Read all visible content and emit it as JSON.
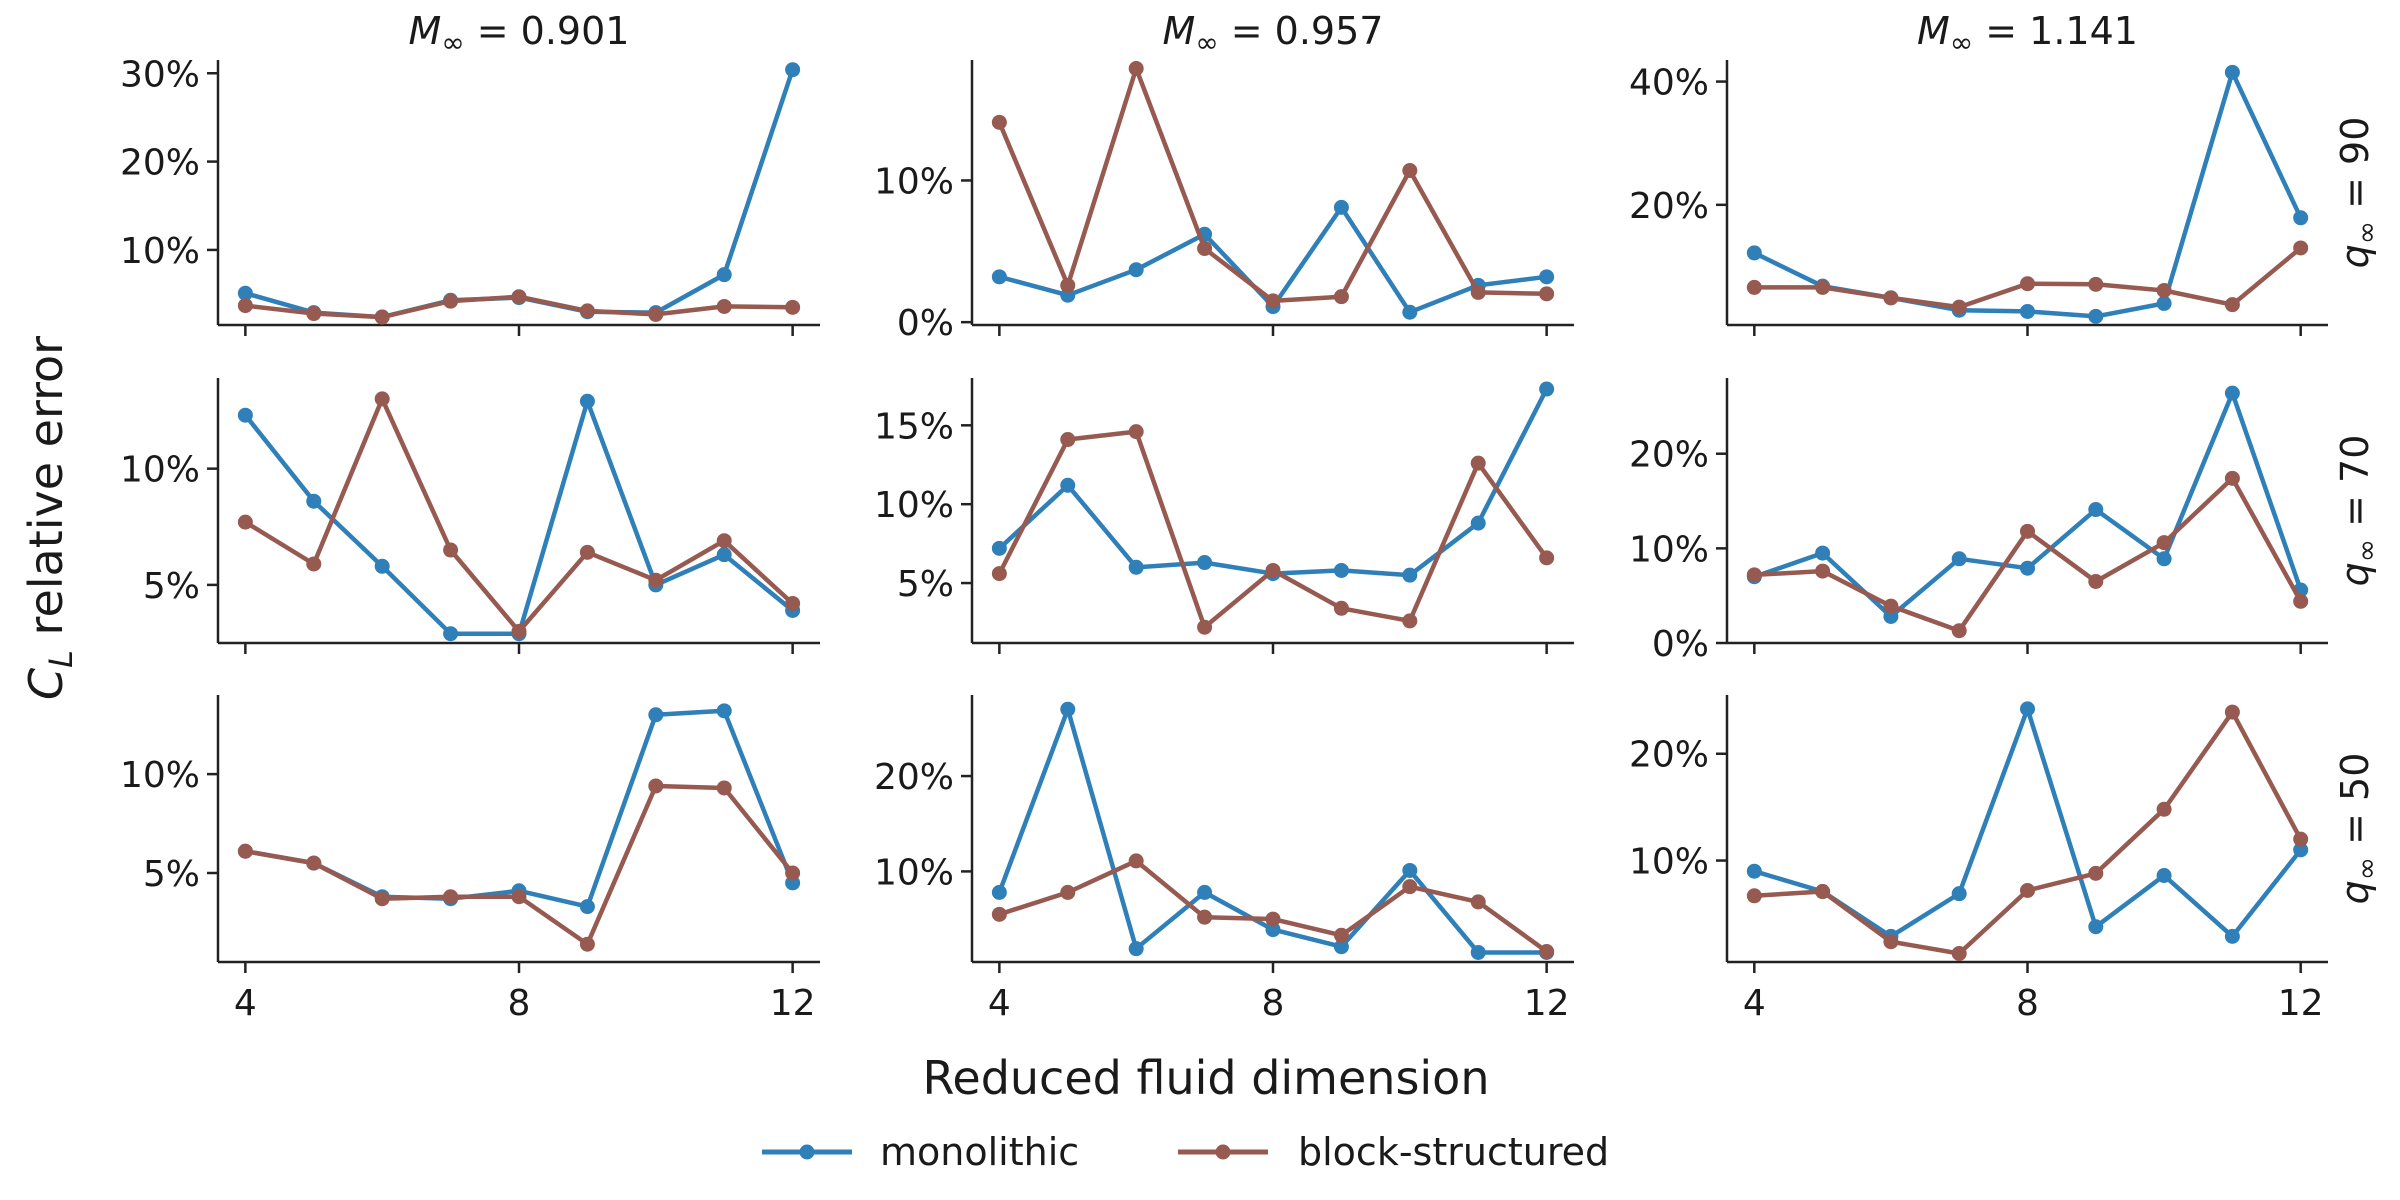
{
  "chart_data": {
    "type": "line",
    "figure": {
      "xlabel": "Reduced fluid dimension",
      "ylabel": "C_L relative error",
      "ylabel_main": "C",
      "ylabel_sub": "L",
      "ylabel_rest": " relative error",
      "legend": [
        {
          "name": "monolithic",
          "color": "#2f7fb8"
        },
        {
          "name": "block-structured",
          "color": "#965a50"
        }
      ],
      "legend_placement": "bottom-center"
    },
    "x": [
      4,
      5,
      6,
      7,
      8,
      9,
      10,
      11,
      12
    ],
    "x_ticks": [
      "4",
      "8",
      "12"
    ],
    "columns": [
      {
        "title": "M_∞ = 0.901",
        "sym": "M",
        "sub": "∞",
        "val": " = 0.901"
      },
      {
        "title": "M_∞ = 0.957",
        "sym": "M",
        "sub": "∞",
        "val": " = 0.957"
      },
      {
        "title": "M_∞ = 1.141",
        "sym": "M",
        "sub": "∞",
        "val": " = 1.141"
      }
    ],
    "rows": [
      {
        "label": "q_∞ = 90",
        "sym": "q",
        "sub": "∞",
        "val": " = 90"
      },
      {
        "label": "q_∞ = 70",
        "sym": "q",
        "sub": "∞",
        "val": " = 70"
      },
      {
        "label": "q_∞ = 50",
        "sym": "q",
        "sub": "∞",
        "val": " = 50"
      }
    ],
    "panels": [
      {
        "row": 0,
        "col": 0,
        "ylim": [
          1.5,
          31.5
        ],
        "yticks": [
          10,
          20,
          30
        ],
        "ytick_labels": [
          "10%",
          "20%",
          "30%"
        ],
        "series": [
          {
            "name": "monolithic",
            "values": [
              5.1,
              2.9,
              2.4,
              4.3,
              4.6,
              3.0,
              2.9,
              7.2,
              30.4
            ]
          },
          {
            "name": "block-structured",
            "values": [
              3.7,
              2.8,
              2.4,
              4.2,
              4.7,
              3.1,
              2.7,
              3.6,
              3.5
            ]
          }
        ]
      },
      {
        "row": 0,
        "col": 1,
        "ylim": [
          -0.2,
          18.5
        ],
        "yticks": [
          0,
          10
        ],
        "ytick_labels": [
          "0%",
          "10%"
        ],
        "series": [
          {
            "name": "monolithic",
            "values": [
              3.2,
              1.9,
              3.7,
              6.2,
              1.1,
              8.1,
              0.7,
              2.6,
              3.2
            ]
          },
          {
            "name": "block-structured",
            "values": [
              14.1,
              2.6,
              17.9,
              5.2,
              1.5,
              1.8,
              10.7,
              2.1,
              2.0
            ]
          }
        ]
      },
      {
        "row": 0,
        "col": 2,
        "ylim": [
          0.5,
          43.5
        ],
        "yticks": [
          20,
          40
        ],
        "ytick_labels": [
          "20%",
          "40%"
        ],
        "series": [
          {
            "name": "monolithic",
            "values": [
              12.2,
              6.8,
              4.9,
              2.9,
              2.7,
              1.9,
              4.0,
              41.5,
              17.9
            ]
          },
          {
            "name": "block-structured",
            "values": [
              6.6,
              6.6,
              4.9,
              3.4,
              7.2,
              7.1,
              6.1,
              3.8,
              13.0
            ]
          }
        ]
      },
      {
        "row": 1,
        "col": 0,
        "ylim": [
          2.5,
          13.9
        ],
        "yticks": [
          5,
          10
        ],
        "ytick_labels": [
          "5%",
          "10%"
        ],
        "series": [
          {
            "name": "monolithic",
            "values": [
              12.3,
              8.6,
              5.8,
              2.9,
              2.9,
              12.9,
              5.0,
              6.3,
              3.9
            ]
          },
          {
            "name": "block-structured",
            "values": [
              7.7,
              5.9,
              13.0,
              6.5,
              3.0,
              6.4,
              5.2,
              6.9,
              4.2
            ]
          }
        ]
      },
      {
        "row": 1,
        "col": 1,
        "ylim": [
          1.2,
          18.0
        ],
        "yticks": [
          5,
          10,
          15
        ],
        "ytick_labels": [
          "5%",
          "10%",
          "15%"
        ],
        "series": [
          {
            "name": "monolithic",
            "values": [
              7.2,
              11.2,
              6.0,
              6.3,
              5.6,
              5.8,
              5.5,
              8.8,
              17.3
            ]
          },
          {
            "name": "block-structured",
            "values": [
              5.6,
              14.1,
              14.6,
              2.2,
              5.8,
              3.4,
              2.6,
              12.6,
              6.6
            ]
          }
        ]
      },
      {
        "row": 1,
        "col": 2,
        "ylim": [
          0.0,
          28.0
        ],
        "yticks": [
          0,
          10,
          20
        ],
        "ytick_labels": [
          "0%",
          "10%",
          "20%"
        ],
        "series": [
          {
            "name": "monolithic",
            "values": [
              7.0,
              9.5,
              2.8,
              8.9,
              7.9,
              14.1,
              8.9,
              26.4,
              5.6
            ]
          },
          {
            "name": "block-structured",
            "values": [
              7.2,
              7.6,
              3.9,
              1.3,
              11.8,
              6.5,
              10.6,
              17.4,
              4.4
            ]
          }
        ]
      },
      {
        "row": 2,
        "col": 0,
        "ylim": [
          0.5,
          14.0
        ],
        "yticks": [
          5,
          10
        ],
        "ytick_labels": [
          "5%",
          "10%"
        ],
        "series": [
          {
            "name": "monolithic",
            "values": [
              6.1,
              5.5,
              3.8,
              3.7,
              4.1,
              3.3,
              13.0,
              13.2,
              4.5
            ]
          },
          {
            "name": "block-structured",
            "values": [
              6.1,
              5.5,
              3.7,
              3.8,
              3.8,
              1.4,
              9.4,
              9.3,
              5.0
            ]
          }
        ]
      },
      {
        "row": 2,
        "col": 1,
        "ylim": [
          0.5,
          28.5
        ],
        "yticks": [
          10,
          20
        ],
        "ytick_labels": [
          "10%",
          "20%"
        ],
        "series": [
          {
            "name": "monolithic",
            "values": [
              7.8,
              27.0,
              1.9,
              7.8,
              3.9,
              2.1,
              10.1,
              1.5,
              1.5
            ]
          },
          {
            "name": "block-structured",
            "values": [
              5.5,
              7.8,
              11.1,
              5.2,
              5.0,
              3.3,
              8.4,
              6.8,
              1.6
            ]
          }
        ]
      },
      {
        "row": 2,
        "col": 2,
        "ylim": [
          0.5,
          25.5
        ],
        "yticks": [
          10,
          20
        ],
        "ytick_labels": [
          "10%",
          "20%"
        ],
        "series": [
          {
            "name": "monolithic",
            "values": [
              9.0,
              7.1,
              2.9,
              6.9,
              24.2,
              3.8,
              8.6,
              2.9,
              11.0
            ]
          },
          {
            "name": "block-structured",
            "values": [
              6.7,
              7.1,
              2.4,
              1.3,
              7.2,
              8.8,
              14.8,
              23.9,
              12.0
            ]
          }
        ]
      }
    ]
  }
}
